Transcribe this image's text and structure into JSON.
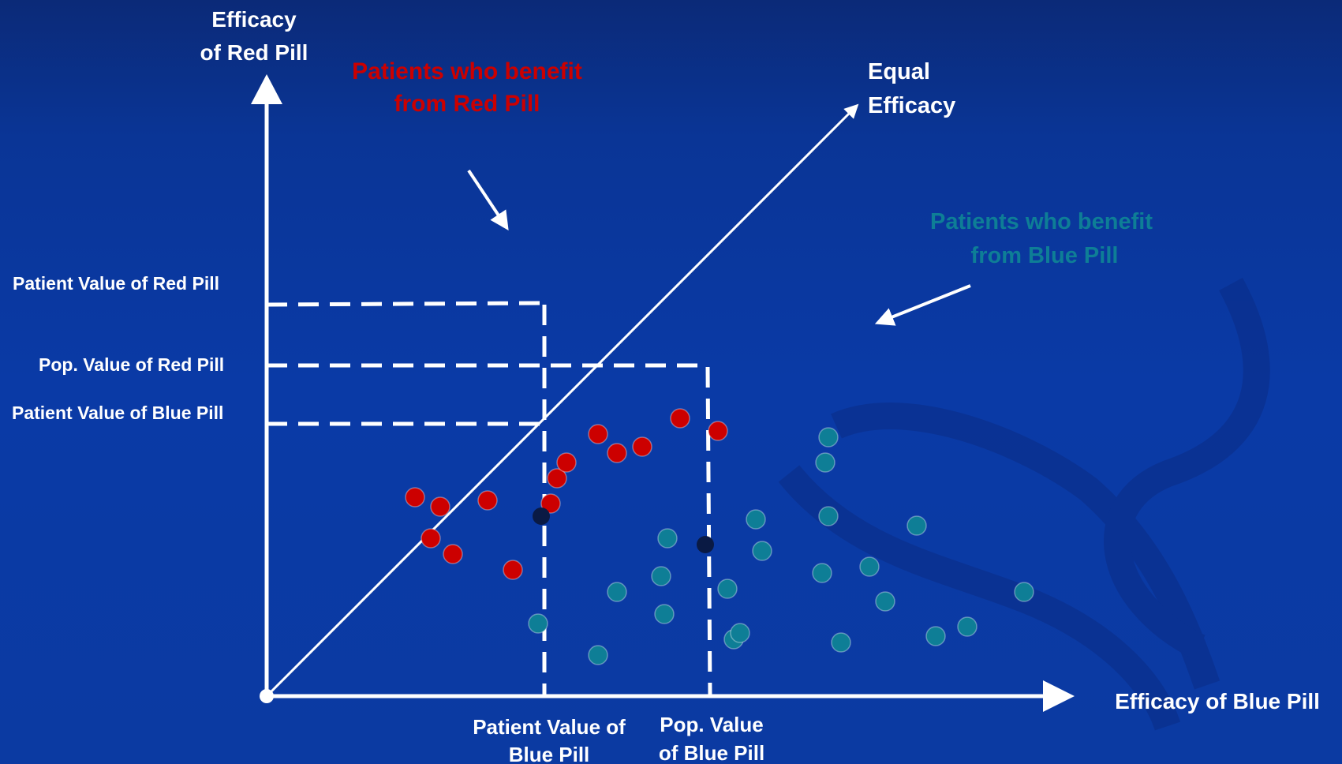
{
  "labels": {
    "y_axis_line1": "Efficacy",
    "y_axis_line2": "of  Red Pill",
    "x_axis": "Efficacy of Blue Pill",
    "diagonal_line1": "Equal",
    "diagonal_line2": "Efficacy",
    "red_group_line1": "Patients who benefit",
    "red_group_line2": "from Red Pill",
    "blue_group_line1": "Patients who benefit",
    "blue_group_line2": "from Blue Pill",
    "patient_red": "Patient Value of Red Pill",
    "pop_red": "Pop. Value of Red Pill",
    "patient_blue": "Patient Value of Blue Pill",
    "patient_blue_x_line1": "Patient Value of",
    "patient_blue_x_line2": "Blue Pill",
    "pop_blue_x_line1": "Pop. Value",
    "pop_blue_x_line2": "of  Blue Pill"
  },
  "colors": {
    "background": "#0a3aa6",
    "axis": "#ffffff",
    "red_group": "#cc0000",
    "blue_group": "#0e7e96",
    "marker": "#0a1a44"
  },
  "chart_data": {
    "type": "scatter",
    "xlabel": "Efficacy of Blue Pill",
    "ylabel": "Efficacy of Red Pill",
    "series": [
      {
        "name": "Patients who benefit from Red Pill",
        "color": "#cc0000",
        "points": [
          [
            0.47,
            0.63
          ],
          [
            0.52,
            0.5
          ],
          [
            0.55,
            0.6
          ],
          [
            0.59,
            0.45
          ],
          [
            0.7,
            0.62
          ],
          [
            0.78,
            0.4
          ],
          [
            0.9,
            0.61
          ],
          [
            0.92,
            0.69
          ],
          [
            0.95,
            0.74
          ],
          [
            1.05,
            0.83
          ],
          [
            1.11,
            0.77
          ],
          [
            1.19,
            0.79
          ],
          [
            1.31,
            0.88
          ],
          [
            1.43,
            0.84
          ]
        ]
      },
      {
        "name": "Patients who benefit from Blue Pill",
        "color": "#0e7e96",
        "points": [
          [
            0.86,
            0.23
          ],
          [
            1.05,
            0.13
          ],
          [
            1.11,
            0.33
          ],
          [
            1.25,
            0.38
          ],
          [
            1.26,
            0.26
          ],
          [
            1.27,
            0.5
          ],
          [
            1.46,
            0.34
          ],
          [
            1.48,
            0.18
          ],
          [
            1.5,
            0.2
          ],
          [
            1.55,
            0.56
          ],
          [
            1.57,
            0.46
          ],
          [
            1.76,
            0.39
          ],
          [
            1.77,
            0.74
          ],
          [
            1.78,
            0.57
          ],
          [
            1.78,
            0.82
          ],
          [
            1.82,
            0.17
          ],
          [
            1.91,
            0.41
          ],
          [
            1.96,
            0.3
          ],
          [
            2.06,
            0.54
          ],
          [
            2.12,
            0.19
          ],
          [
            2.22,
            0.22
          ],
          [
            2.4,
            0.33
          ]
        ]
      }
    ],
    "patient": {
      "x": 0.87,
      "y": 0.57
    },
    "population": {
      "x": 1.39,
      "y": 0.48
    }
  }
}
